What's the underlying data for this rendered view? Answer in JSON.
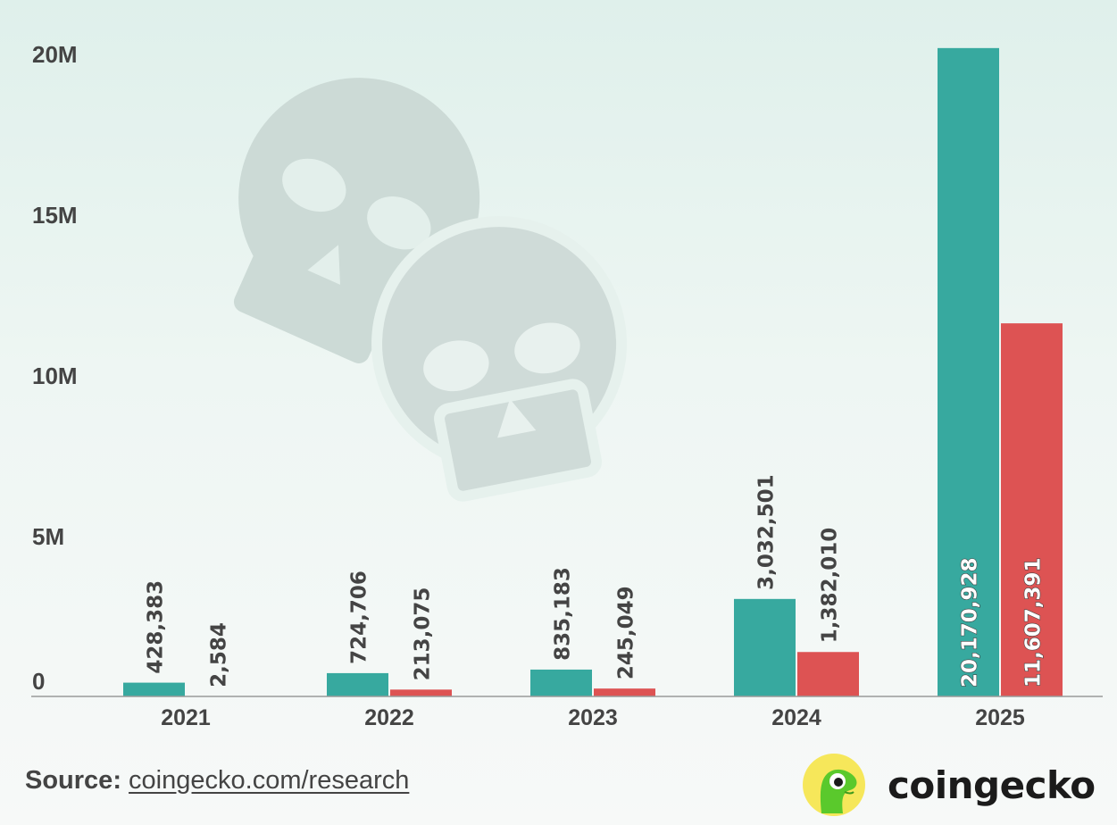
{
  "chart_data": {
    "type": "bar",
    "categories": [
      "2021",
      "2022",
      "2023",
      "2024",
      "2025"
    ],
    "series": [
      {
        "values": [
          428383,
          724706,
          835183,
          3032501,
          20170928
        ],
        "color": "#37a99f"
      },
      {
        "values": [
          2584,
          213075,
          245049,
          1382010,
          11607391
        ],
        "color": "#dd5353"
      }
    ],
    "data_labels": [
      [
        "428,383",
        "724,706",
        "835,183",
        "3,032,501",
        "20,170,928"
      ],
      [
        "2,584",
        "213,075",
        "245,049",
        "1,382,010",
        "11,607,391"
      ]
    ],
    "y_ticks": [
      {
        "value": 0,
        "label": "0"
      },
      {
        "value": 5000000,
        "label": "5M"
      },
      {
        "value": 10000000,
        "label": "10M"
      },
      {
        "value": 15000000,
        "label": "15M"
      },
      {
        "value": 20000000,
        "label": "20M"
      }
    ],
    "ylim": [
      0,
      20500000
    ],
    "grid": false,
    "legend": "none",
    "background_icon": "skull-icon"
  },
  "footer": {
    "source_label": "Source:",
    "source_link": "coingecko.com/research"
  },
  "brand": {
    "name": "coingecko",
    "logo_icon": "gecko-logo-icon"
  },
  "colors": {
    "primary": "#37a99f",
    "secondary": "#dd5353",
    "text": "#444444",
    "axis": "#9a9a9a"
  }
}
